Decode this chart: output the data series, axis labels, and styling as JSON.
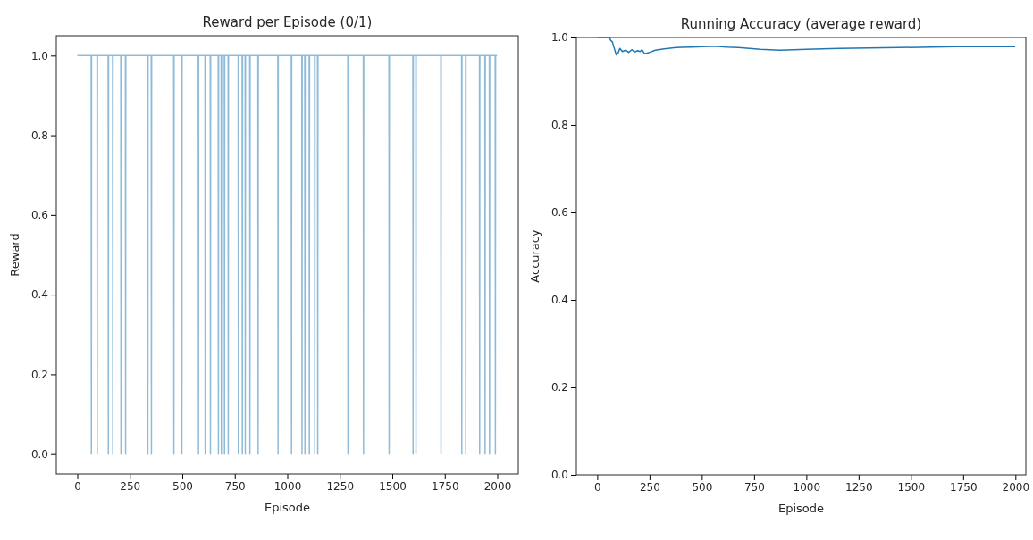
{
  "chart_data": [
    {
      "type": "line",
      "title": "Reward per Episode (0/1)",
      "xlabel": "Episode",
      "ylabel": "Reward",
      "xlim": [
        -100,
        2100
      ],
      "ylim": [
        -0.05,
        1.05
      ],
      "xticks": [
        0,
        250,
        500,
        750,
        1000,
        1250,
        1500,
        1750,
        2000
      ],
      "yticks": [
        {
          "value": 0,
          "label": "0.0"
        },
        {
          "value": 0.2,
          "label": "0.2"
        },
        {
          "value": 0.4,
          "label": "0.4"
        },
        {
          "value": 0.6,
          "label": "0.6"
        },
        {
          "value": 0.8,
          "label": "0.8"
        },
        {
          "value": 1,
          "label": "1.0"
        }
      ],
      "grid": false,
      "series": [
        {
          "color": "#8fbbd9",
          "x": [
            0,
            66,
            67,
            68,
            94,
            95,
            96,
            147,
            148,
            149,
            168,
            169,
            170,
            207,
            208,
            209,
            229,
            230,
            231,
            335,
            336,
            337,
            352,
            353,
            354,
            459,
            460,
            461,
            497,
            498,
            499,
            576,
            577,
            578,
            608,
            609,
            610,
            633,
            634,
            635,
            671,
            672,
            673,
            685,
            686,
            687,
            700,
            701,
            702,
            718,
            719,
            720,
            766,
            767,
            768,
            785,
            786,
            787,
            799,
            800,
            801,
            821,
            822,
            823,
            860,
            861,
            862,
            955,
            956,
            957,
            1019,
            1020,
            1021,
            1069,
            1070,
            1071,
            1083,
            1084,
            1085,
            1104,
            1105,
            1106,
            1130,
            1131,
            1132,
            1144,
            1145,
            1146,
            1288,
            1289,
            1290,
            1362,
            1363,
            1364,
            1484,
            1485,
            1486,
            1598,
            1599,
            1600,
            1612,
            1613,
            1614,
            1731,
            1732,
            1733,
            1830,
            1831,
            1832,
            1849,
            1850,
            1851,
            1915,
            1916,
            1917,
            1941,
            1942,
            1943,
            1962,
            1963,
            1964,
            1990,
            1991,
            1992,
            1999
          ],
          "values": [
            1,
            1,
            0,
            1,
            1,
            0,
            1,
            1,
            0,
            1,
            1,
            0,
            1,
            1,
            0,
            1,
            1,
            0,
            1,
            1,
            0,
            1,
            1,
            0,
            1,
            1,
            0,
            1,
            1,
            0,
            1,
            1,
            0,
            1,
            1,
            0,
            1,
            1,
            0,
            1,
            1,
            0,
            1,
            1,
            0,
            1,
            1,
            0,
            1,
            1,
            0,
            1,
            1,
            0,
            1,
            1,
            0,
            1,
            1,
            0,
            1,
            1,
            0,
            1,
            1,
            0,
            1,
            1,
            0,
            1,
            1,
            0,
            1,
            1,
            0,
            1,
            1,
            0,
            1,
            1,
            0,
            1,
            1,
            0,
            1,
            1,
            0,
            1,
            1,
            0,
            1,
            1,
            0,
            1,
            1,
            0,
            1,
            1,
            0,
            1,
            1,
            0,
            1,
            1,
            0,
            1,
            1,
            0,
            1,
            1,
            0,
            1,
            1,
            0,
            1,
            1,
            0,
            1,
            1,
            0,
            1,
            1,
            0,
            1,
            1
          ]
        }
      ]
    },
    {
      "type": "line",
      "title": "Running Accuracy (average reward)",
      "xlabel": "Episode",
      "ylabel": "Accuracy",
      "xlim": [
        -100,
        2050
      ],
      "ylim": [
        0,
        1
      ],
      "xticks": [
        0,
        250,
        500,
        750,
        1000,
        1250,
        1500,
        1750,
        2000
      ],
      "yticks": [
        {
          "value": 0,
          "label": "0.0"
        },
        {
          "value": 0.2,
          "label": "0.2"
        },
        {
          "value": 0.4,
          "label": "0.4"
        },
        {
          "value": 0.6,
          "label": "0.6"
        },
        {
          "value": 0.8,
          "label": "0.8"
        },
        {
          "value": 1,
          "label": "1.0"
        }
      ],
      "grid": false,
      "series": [
        {
          "color": "#1f77b4",
          "x": [
            0,
            58,
            65,
            72,
            91,
            100,
            108,
            120,
            136,
            150,
            165,
            180,
            193,
            205,
            214,
            222,
            228,
            250,
            278,
            320,
            377,
            450,
            562,
            620,
            675,
            780,
            874,
            1000,
            1157,
            1300,
            1441,
            1600,
            1723,
            1850,
            1999
          ],
          "values": [
            1,
            1,
            0.993,
            0.99,
            0.96,
            0.965,
            0.975,
            0.968,
            0.971,
            0.966,
            0.972,
            0.967,
            0.97,
            0.968,
            0.972,
            0.966,
            0.963,
            0.966,
            0.971,
            0.974,
            0.977,
            0.978,
            0.98,
            0.978,
            0.977,
            0.973,
            0.971,
            0.973,
            0.975,
            0.976,
            0.977,
            0.978,
            0.979,
            0.979,
            0.979
          ]
        }
      ]
    }
  ]
}
